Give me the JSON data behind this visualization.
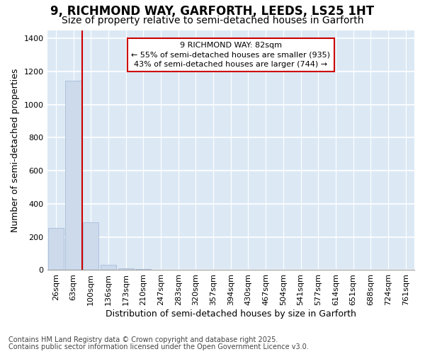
{
  "title_line1": "9, RICHMOND WAY, GARFORTH, LEEDS, LS25 1HT",
  "title_line2": "Size of property relative to semi-detached houses in Garforth",
  "xlabel": "Distribution of semi-detached houses by size in Garforth",
  "ylabel": "Number of semi-detached properties",
  "categories": [
    "26sqm",
    "63sqm",
    "100sqm",
    "136sqm",
    "173sqm",
    "210sqm",
    "247sqm",
    "283sqm",
    "320sqm",
    "357sqm",
    "394sqm",
    "430sqm",
    "467sqm",
    "504sqm",
    "541sqm",
    "577sqm",
    "614sqm",
    "651sqm",
    "688sqm",
    "724sqm",
    "761sqm"
  ],
  "values": [
    255,
    1145,
    290,
    30,
    12,
    6,
    0,
    0,
    0,
    0,
    0,
    0,
    0,
    0,
    0,
    0,
    0,
    0,
    0,
    0,
    0
  ],
  "bar_color": "#ccdaec",
  "bar_edge_color": "#aabcd8",
  "vline_x": 1.5,
  "vline_color": "#cc0000",
  "annotation_text": "9 RICHMOND WAY: 82sqm\n← 55% of semi-detached houses are smaller (935)\n43% of semi-detached houses are larger (744) →",
  "annotation_box_color": "#ffffff",
  "annotation_border_color": "#cc0000",
  "ylim": [
    0,
    1450
  ],
  "yticks": [
    0,
    200,
    400,
    600,
    800,
    1000,
    1200,
    1400
  ],
  "footer_line1": "Contains HM Land Registry data © Crown copyright and database right 2025.",
  "footer_line2": "Contains public sector information licensed under the Open Government Licence v3.0.",
  "fig_bg_color": "#ffffff",
  "plot_bg_color": "#dce9f5",
  "grid_color": "#ffffff",
  "title_fontsize": 12,
  "subtitle_fontsize": 10,
  "axis_label_fontsize": 9,
  "tick_fontsize": 8,
  "annotation_fontsize": 8,
  "footer_fontsize": 7
}
